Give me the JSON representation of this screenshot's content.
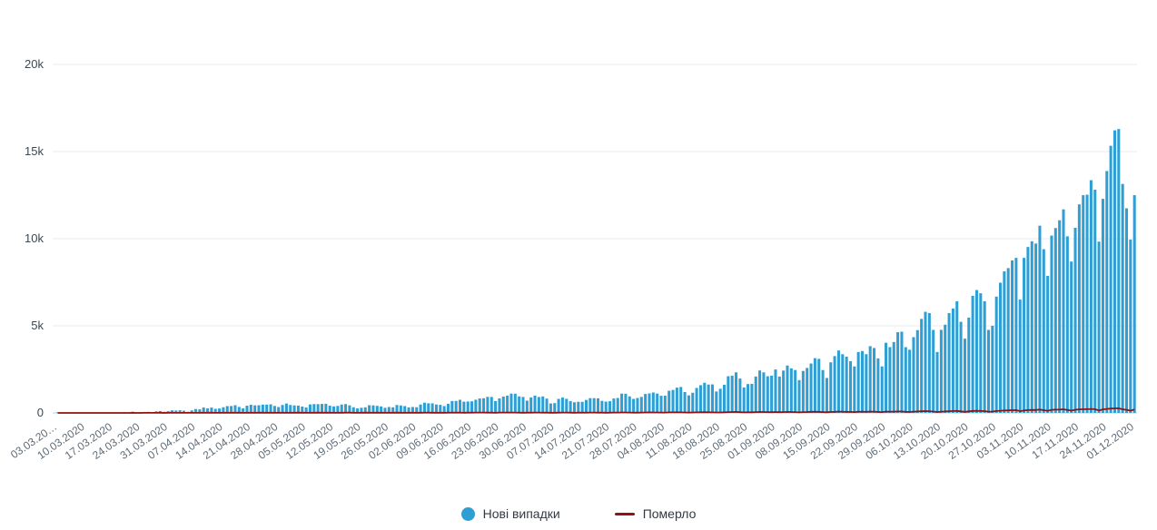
{
  "chart_data": {
    "type": "bar",
    "title": "",
    "xlabel": "",
    "ylabel": "",
    "ylim": [
      0,
      20000
    ],
    "grid": true,
    "legend_position": "bottom",
    "y_ticks": [
      {
        "value": 0,
        "label": "0"
      },
      {
        "value": 5000,
        "label": "5k"
      },
      {
        "value": 10000,
        "label": "10k"
      },
      {
        "value": 15000,
        "label": "15k"
      },
      {
        "value": 20000,
        "label": "20k"
      }
    ],
    "x_tick_labels": [
      "03.03.20…",
      "10.03.2020",
      "17.03.2020",
      "24.03.2020",
      "31.03.2020",
      "07.04.2020",
      "14.04.2020",
      "21.04.2020",
      "28.04.2020",
      "05.05.2020",
      "12.05.2020",
      "19.05.2020",
      "26.05.2020",
      "02.06.2020",
      "09.06.2020",
      "16.06.2020",
      "23.06.2020",
      "30.06.2020",
      "07.07.2020",
      "14.07.2020",
      "21.07.2020",
      "28.07.2020",
      "04.08.2020",
      "11.08.2020",
      "18.08.2020",
      "25.08.2020",
      "01.09.2020",
      "08.09.2020",
      "15.09.2020",
      "22.09.2020",
      "29.09.2020",
      "06.10.2020",
      "13.10.2020",
      "20.10.2020",
      "27.10.2020",
      "03.11.2020",
      "10.11.2020",
      "17.11.2020",
      "24.11.2020",
      "01.12.2020"
    ],
    "series": [
      {
        "name": "Нові випадки",
        "type": "bar",
        "color": "#2e9fd4",
        "values": [
          1,
          0,
          1,
          0,
          0,
          0,
          1,
          0,
          1,
          2,
          2,
          5,
          7,
          6,
          7,
          14,
          26,
          41,
          26,
          73,
          30,
          47,
          57,
          62,
          46,
          92,
          109,
          66,
          97,
          149,
          139,
          154,
          126,
          68,
          143,
          224,
          206,
          311,
          266,
          308,
          237,
          254,
          325,
          392,
          397,
          444,
          343,
          261,
          415,
          467,
          434,
          441,
          477,
          478,
          492,
          401,
          339,
          456,
          540,
          455,
          430,
          418,
          366,
          316,
          487,
          507,
          504,
          515,
          522,
          416,
          375,
          402,
          483,
          508,
          433,
          325,
          260,
          297,
          321,
          442,
          432,
          406,
          374,
          295,
          339,
          321,
          455,
          429,
          393,
          316,
          340,
          328,
          483,
          588,
          553,
          550,
          485,
          463,
          394,
          525,
          683,
          689,
          753,
          648,
          656,
          666,
          758,
          829,
          841,
          921,
          917,
          681,
          833,
          940,
          994,
          1109,
          1104,
          948,
          917,
          706,
          889,
          994,
          914,
          948,
          823,
          543,
          564,
          807,
          882,
          810,
          678,
          612,
          638,
          636,
          746,
          848,
          847,
          836,
          691,
          651,
          673,
          829,
          856,
          1106,
          1100,
          948,
          807,
          856,
          919,
          1090,
          1119,
          1172,
          1112,
          986,
          988,
          1271,
          1318,
          1453,
          1489,
          1199,
          1008,
          1158,
          1433,
          1592,
          1732,
          1629,
          1637,
          1231,
          1385,
          1616,
          2106,
          2134,
          2328,
          1974,
          1462,
          1658,
          1670,
          2088,
          2438,
          2328,
          2107,
          2141,
          2495,
          2088,
          2430,
          2723,
          2556,
          2462,
          1882,
          2411,
          2582,
          2836,
          3144,
          3103,
          2462,
          2005,
          2905,
          3261,
          3584,
          3370,
          3228,
          2966,
          2669,
          3497,
          3552,
          3372,
          3833,
          3727,
          3130,
          2671,
          4027,
          3778,
          4069,
          4633,
          4661,
          3774,
          3627,
          4348,
          4753,
          5397,
          5804,
          5728,
          4766,
          3497,
          4768,
          5062,
          5728,
          5992,
          6410,
          5231,
          4261,
          5469,
          6719,
          7053,
          6868,
          6410,
          4766,
          5002,
          6677,
          7474,
          8128,
          8312,
          8752,
          8899,
          6505,
          8899,
          9524,
          9850,
          9721,
          10746,
          9397,
          7865,
          10179,
          10611,
          11057,
          11683,
          10136,
          8687,
          10622,
          11968,
          12496,
          12524,
          13357,
          12811,
          9832,
          12287,
          13882,
          15331,
          16218,
          16294,
          13141,
          11742,
          9946,
          12498
        ]
      },
      {
        "name": "Померло",
        "type": "line",
        "color": "#8e1313",
        "values": [
          0,
          0,
          0,
          0,
          0,
          0,
          0,
          0,
          0,
          1,
          0,
          0,
          1,
          1,
          0,
          2,
          0,
          1,
          1,
          3,
          2,
          1,
          5,
          3,
          5,
          5,
          8,
          2,
          10,
          8,
          4,
          3,
          6,
          7,
          10,
          5,
          11,
          8,
          8,
          10,
          5,
          13,
          13,
          8,
          10,
          12,
          14,
          5,
          10,
          12,
          9,
          13,
          14,
          9,
          10,
          9,
          10,
          12,
          13,
          12,
          13,
          14,
          9,
          8,
          10,
          13,
          17,
          12,
          15,
          11,
          10,
          12,
          11,
          15,
          17,
          9,
          8,
          13,
          14,
          12,
          11,
          14,
          10,
          9,
          13,
          12,
          14,
          11,
          13,
          10,
          12,
          9,
          12,
          14,
          15,
          13,
          10,
          8,
          13,
          16,
          14,
          17,
          15,
          12,
          14,
          17,
          21,
          23,
          19,
          17,
          15,
          12,
          20,
          23,
          24,
          21,
          19,
          15,
          12,
          18,
          17,
          21,
          19,
          18,
          15,
          9,
          12,
          18,
          21,
          19,
          15,
          13,
          16,
          15,
          18,
          20,
          19,
          17,
          14,
          12,
          15,
          19,
          22,
          28,
          25,
          20,
          16,
          18,
          21,
          27,
          30,
          28,
          25,
          22,
          21,
          30,
          33,
          36,
          32,
          26,
          19,
          24,
          33,
          38,
          44,
          37,
          33,
          25,
          28,
          35,
          48,
          51,
          55,
          43,
          29,
          34,
          36,
          45,
          57,
          54,
          46,
          42,
          51,
          44,
          49,
          58,
          53,
          48,
          33,
          47,
          53,
          62,
          68,
          64,
          49,
          38,
          57,
          63,
          76,
          69,
          63,
          55,
          47,
          66,
          71,
          65,
          79,
          74,
          57,
          46,
          79,
          71,
          73,
          81,
          85,
          62,
          56,
          71,
          83,
          97,
          104,
          99,
          76,
          52,
          73,
          85,
          101,
          107,
          116,
          88,
          65,
          88,
          113,
          122,
          117,
          106,
          71,
          77,
          108,
          126,
          141,
          147,
          155,
          162,
          101,
          143,
          164,
          173,
          168,
          191,
          158,
          118,
          175,
          186,
          194,
          206,
          167,
          129,
          183,
          204,
          211,
          213,
          228,
          216,
          141,
          203,
          227,
          249,
          258,
          265,
          208,
          177,
          131,
          195
        ]
      }
    ]
  },
  "legend": {
    "cases_label": "Нові випадки",
    "deaths_label": "Померло"
  }
}
